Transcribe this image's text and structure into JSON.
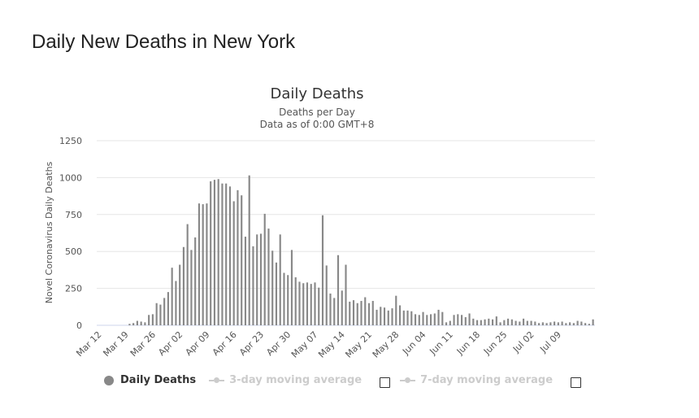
{
  "page": {
    "title": "Daily New Deaths in New York"
  },
  "legend": {
    "daily_label": "Daily Deaths",
    "avg3_label": "3-day moving average",
    "avg7_label": "7-day moving average"
  },
  "colors": {
    "bar": "#888888",
    "grid": "#e6e6e6",
    "inactive": "#cccccc"
  },
  "chart_data": {
    "type": "bar",
    "title": "Daily Deaths",
    "subtitle": "Deaths per Day",
    "subtitle2": "Data as of 0:00 GMT+8",
    "ylabel": "Novel Coronavirus Daily Deaths",
    "xlabel": "",
    "ylim": [
      0,
      1250
    ],
    "yticks": [
      0,
      250,
      500,
      750,
      1000,
      1250
    ],
    "x_tick_labels": [
      "Mar 12",
      "Mar 19",
      "Mar 26",
      "Apr 02",
      "Apr 09",
      "Apr 16",
      "Apr 23",
      "Apr 30",
      "May 07",
      "May 14",
      "May 21",
      "May 28",
      "Jun 04",
      "Jun 11",
      "Jun 18",
      "Jun 25",
      "Jul 02",
      "Jul 09"
    ],
    "grid": true,
    "series": [
      {
        "name": "Daily Deaths",
        "values": [
          0,
          0,
          0,
          0,
          0,
          0,
          0,
          0,
          10,
          15,
          30,
          25,
          20,
          70,
          75,
          150,
          140,
          185,
          225,
          390,
          300,
          410,
          530,
          685,
          510,
          595,
          825,
          820,
          825,
          975,
          985,
          990,
          960,
          960,
          940,
          840,
          915,
          880,
          600,
          1015,
          535,
          615,
          620,
          755,
          655,
          505,
          425,
          615,
          355,
          340,
          510,
          325,
          295,
          285,
          290,
          280,
          290,
          255,
          745,
          405,
          215,
          185,
          475,
          235,
          410,
          160,
          170,
          150,
          165,
          190,
          150,
          165,
          105,
          125,
          120,
          100,
          115,
          200,
          135,
          100,
          100,
          95,
          75,
          70,
          90,
          70,
          75,
          80,
          105,
          90,
          20,
          30,
          70,
          75,
          70,
          55,
          80,
          45,
          35,
          35,
          40,
          45,
          40,
          60,
          20,
          35,
          45,
          40,
          30,
          25,
          45,
          30,
          30,
          25,
          15,
          20,
          15,
          20,
          25,
          20,
          25,
          15,
          20,
          15,
          30,
          25,
          15,
          10,
          40
        ]
      }
    ]
  }
}
